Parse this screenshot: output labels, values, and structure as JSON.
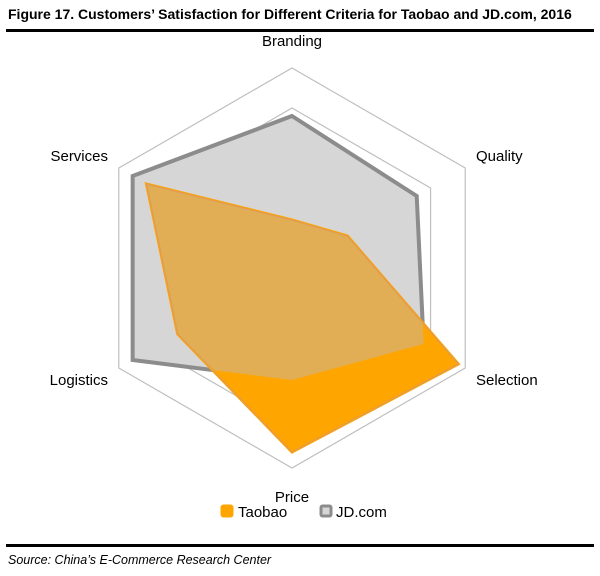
{
  "header": {
    "title": "Figure 17. Customers’ Satisfaction for Different Criteria for Taobao and JD.com, 2016"
  },
  "footer": {
    "source": "Source: China’s E-Commerce Research Center"
  },
  "chart_data": {
    "type": "radar",
    "categories": [
      "Branding",
      "Quality",
      "Selection",
      "Price",
      "Logistics",
      "Services"
    ],
    "rmax": 5,
    "grid_levels": [
      1,
      2,
      3,
      4,
      5
    ],
    "series": [
      {
        "name": "Taobao",
        "values": [
          1.2,
          1.6,
          4.8,
          4.6,
          3.3,
          4.2
        ],
        "color": "#FFA500",
        "fill": "#FFA500"
      },
      {
        "name": "JD.com",
        "values": [
          3.8,
          3.6,
          3.8,
          2.8,
          4.6,
          4.6
        ],
        "color": "#8C8C8C",
        "fill": "#D6D6D6"
      }
    ],
    "legend": [
      "Taobao",
      "JD.com"
    ],
    "legend_position": "bottom"
  }
}
